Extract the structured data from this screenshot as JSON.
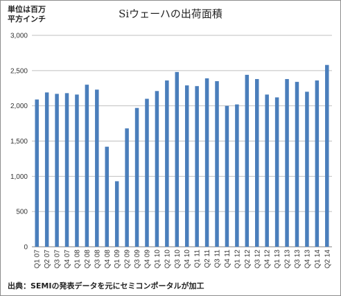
{
  "chart_data": {
    "type": "bar",
    "title": "Siウェーハの出荷面積",
    "ylabel": "単位は百万平方インチ",
    "ylabel_lines": [
      "単位は百万",
      "平方インチ"
    ],
    "source": "出典：SEMIの発表データを元にセミコンポータルが加工",
    "ylim": [
      0,
      3000
    ],
    "yticks": [
      0,
      500,
      1000,
      1500,
      2000,
      2500,
      3000
    ],
    "ytick_labels": [
      "0",
      "500",
      "1,000",
      "1,500",
      "2,000",
      "2,500",
      "3,000"
    ],
    "categories": [
      "Q1 07",
      "Q2 07",
      "Q3 07",
      "Q4 07",
      "Q1 08",
      "Q2 08",
      "Q3 08",
      "Q4 08",
      "Q1 09",
      "Q2 09",
      "Q3 09",
      "Q4 09",
      "Q1 10",
      "Q2 10",
      "Q3 10",
      "Q4 10",
      "Q1 11",
      "Q2 11",
      "Q3 11",
      "Q4 11",
      "Q1 12",
      "Q2 12",
      "Q3 12",
      "Q4 12",
      "Q1 13",
      "Q2 13",
      "Q3 13",
      "Q4 13",
      "Q1 14",
      "Q2 14"
    ],
    "values": [
      2090,
      2190,
      2170,
      2180,
      2160,
      2300,
      2230,
      1420,
      930,
      1680,
      1970,
      2100,
      2210,
      2360,
      2480,
      2290,
      2280,
      2390,
      2350,
      2000,
      2020,
      2440,
      2380,
      2160,
      2120,
      2380,
      2340,
      2200,
      2360,
      2580
    ],
    "bar_color": "#4a7ebb",
    "grid": true,
    "grid_color": "#bfbfbf"
  }
}
